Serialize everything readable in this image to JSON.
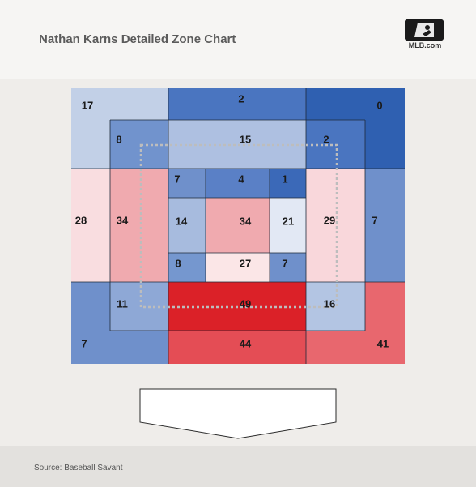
{
  "header": {
    "title": "Nathan Karns Detailed Zone Chart",
    "logo_text": "MLB.com"
  },
  "footer": {
    "source": "Source: Baseball Savant"
  },
  "colors": {
    "max_red": "#db2128",
    "max_blue": "#2e5fb0",
    "neutral": "#f4f1f0"
  },
  "chart_data": {
    "type": "heatmap",
    "title": "Nathan Karns Detailed Zone Chart",
    "zones": [
      {
        "id": "outer-top-left",
        "value": 17,
        "color": "#c2d0e7"
      },
      {
        "id": "outer-top",
        "value": 2,
        "color": "#4a75c0"
      },
      {
        "id": "outer-top-right",
        "value": 0,
        "color": "#2f60b1"
      },
      {
        "id": "mid-top-left",
        "value": 8,
        "color": "#7193cd"
      },
      {
        "id": "mid-top",
        "value": 15,
        "color": "#aec0e1"
      },
      {
        "id": "mid-top-right",
        "value": 2,
        "color": "#4a75c0"
      },
      {
        "id": "outer-left",
        "value": 28,
        "color": "#f9dde0"
      },
      {
        "id": "mid-left",
        "value": 34,
        "color": "#f0aaaf"
      },
      {
        "id": "mid-right",
        "value": 29,
        "color": "#f9d7db"
      },
      {
        "id": "outer-right",
        "value": 7,
        "color": "#6f90cb"
      },
      {
        "id": "inner-1",
        "value": 7,
        "color": "#6f90cb"
      },
      {
        "id": "inner-2",
        "value": 4,
        "color": "#5a80c6"
      },
      {
        "id": "inner-3",
        "value": 1,
        "color": "#3b69b8"
      },
      {
        "id": "inner-4",
        "value": 14,
        "color": "#a7bbde"
      },
      {
        "id": "inner-5",
        "value": 34,
        "color": "#f0aaaf"
      },
      {
        "id": "inner-6",
        "value": 21,
        "color": "#e2e8f4"
      },
      {
        "id": "inner-7",
        "value": 8,
        "color": "#7597cf"
      },
      {
        "id": "inner-8",
        "value": 27,
        "color": "#fbe6e7"
      },
      {
        "id": "inner-9",
        "value": 7,
        "color": "#6f90cb"
      },
      {
        "id": "mid-bottom-left",
        "value": 11,
        "color": "#8ea8d6"
      },
      {
        "id": "mid-bottom",
        "value": 49,
        "color": "#db2128"
      },
      {
        "id": "mid-bottom-right",
        "value": 16,
        "color": "#b3c5e3"
      },
      {
        "id": "outer-bottom-left",
        "value": 7,
        "color": "#6f90cb"
      },
      {
        "id": "outer-bottom",
        "value": 44,
        "color": "#e44d55"
      },
      {
        "id": "outer-bottom-right",
        "value": 41,
        "color": "#e8676e"
      }
    ]
  }
}
